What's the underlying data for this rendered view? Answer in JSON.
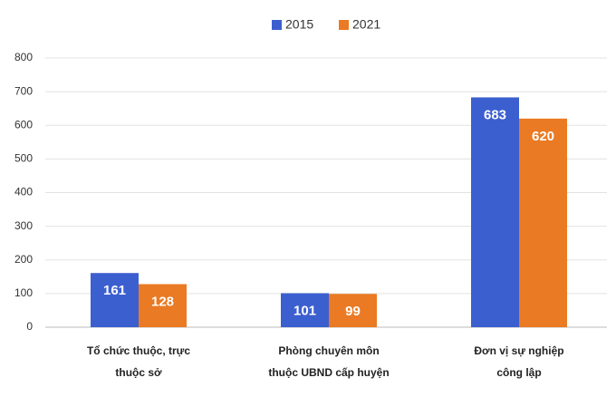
{
  "chart_data": {
    "type": "bar",
    "categories": [
      [
        "Tổ chức thuộc, trực",
        "thuộc sở"
      ],
      [
        "Phòng chuyên môn",
        "thuộc UBND cấp huyện"
      ],
      [
        "Đơn vị sự nghiệp",
        "công lập"
      ]
    ],
    "series": [
      {
        "name": "2015",
        "color": "#3c5fd0",
        "values": [
          161,
          101,
          683
        ]
      },
      {
        "name": "2021",
        "color": "#ea7a23",
        "values": [
          128,
          99,
          620
        ]
      }
    ],
    "ylim": [
      0,
      800
    ],
    "yticks": [
      0,
      100,
      200,
      300,
      400,
      500,
      600,
      700,
      800
    ],
    "grid": true,
    "legend": "top"
  }
}
